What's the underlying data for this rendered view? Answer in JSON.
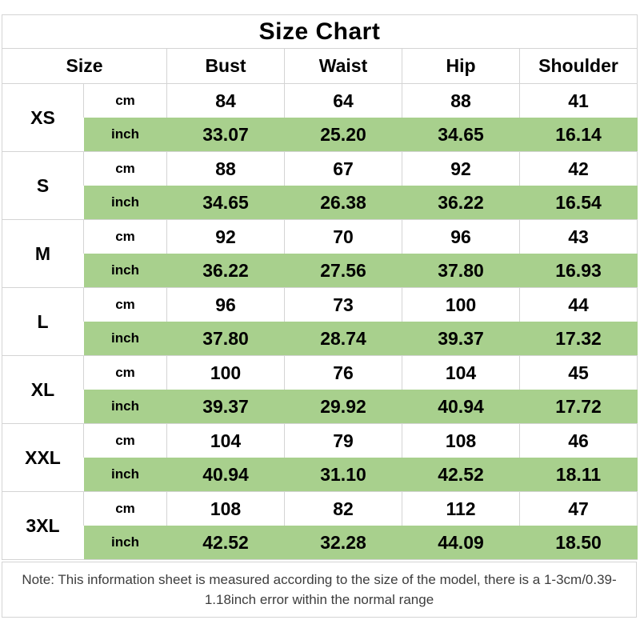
{
  "chart_data": {
    "type": "table",
    "title": "Size Chart",
    "columns": [
      "Size",
      "Bust",
      "Waist",
      "Hip",
      "Shoulder"
    ],
    "unit_cm": "cm",
    "unit_inch": "inch",
    "sizes": [
      {
        "label": "XS",
        "cm": [
          "84",
          "64",
          "88",
          "41"
        ],
        "inch": [
          "33.07",
          "25.20",
          "34.65",
          "16.14"
        ]
      },
      {
        "label": "S",
        "cm": [
          "88",
          "67",
          "92",
          "42"
        ],
        "inch": [
          "34.65",
          "26.38",
          "36.22",
          "16.54"
        ]
      },
      {
        "label": "M",
        "cm": [
          "92",
          "70",
          "96",
          "43"
        ],
        "inch": [
          "36.22",
          "27.56",
          "37.80",
          "16.93"
        ]
      },
      {
        "label": "L",
        "cm": [
          "96",
          "73",
          "100",
          "44"
        ],
        "inch": [
          "37.80",
          "28.74",
          "39.37",
          "17.32"
        ]
      },
      {
        "label": "XL",
        "cm": [
          "100",
          "76",
          "104",
          "45"
        ],
        "inch": [
          "39.37",
          "29.92",
          "40.94",
          "17.72"
        ]
      },
      {
        "label": "XXL",
        "cm": [
          "104",
          "79",
          "108",
          "46"
        ],
        "inch": [
          "40.94",
          "31.10",
          "42.52",
          "18.11"
        ]
      },
      {
        "label": "3XL",
        "cm": [
          "108",
          "82",
          "112",
          "47"
        ],
        "inch": [
          "42.52",
          "32.28",
          "44.09",
          "18.50"
        ]
      }
    ],
    "note": "Note: This information sheet is measured according to the size of the model, there is a 1-3cm/0.39-1.18inch error within the normal range"
  },
  "colors": {
    "highlight_green": "#a8d08d",
    "grid_line": "#d4d4d4",
    "text": "#000000",
    "note_text": "#3d3d3d"
  }
}
